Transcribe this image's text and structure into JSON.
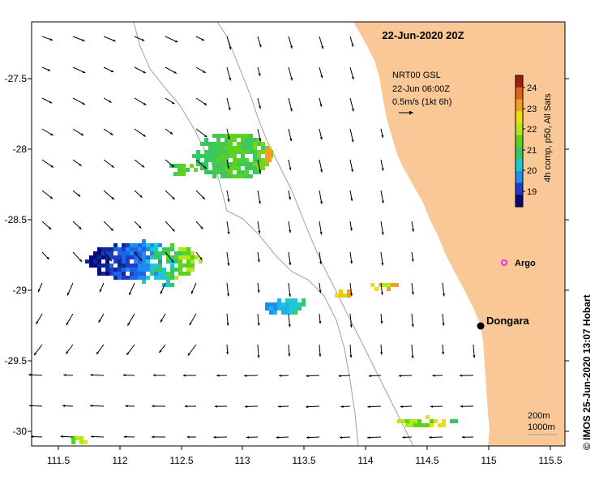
{
  "title": "22-Jun-2020 20Z",
  "current_legend": {
    "source": "NRT00 GSL",
    "time": "22-Jun 06:00Z",
    "scale": "0.5m/s (1kt 6h)"
  },
  "colorbar": {
    "label": "4h comp, p50, All Sats",
    "ticks": [
      "19",
      "20",
      "21",
      "22",
      "23",
      "24"
    ],
    "colors": [
      "#08087a",
      "#1e3cc8",
      "#1e8cf0",
      "#1ec8d2",
      "#32c864",
      "#5ad21e",
      "#b4e61e",
      "#f0dc14",
      "#f0a01e",
      "#dc641e",
      "#a01e0a"
    ]
  },
  "places": [
    {
      "name": "Dongara"
    },
    {
      "name": "Argo"
    }
  ],
  "isobath_legend": [
    "200m",
    "1000m"
  ],
  "credit": "© IMOS 25-Jun-2020 13:07 Hobart",
  "axes": {
    "x_ticks": [
      "111.5",
      "112",
      "112.5",
      "113",
      "113.5",
      "114",
      "114.5",
      "115",
      "115.5"
    ],
    "y_ticks": [
      "-27.5",
      "-28",
      "-28.5",
      "-29",
      "-29.5",
      "-30"
    ]
  },
  "colors": {
    "land": "#f9c896",
    "ocean": "#ffffff",
    "argo": "#e632e6",
    "isobath": "#a0a0a0"
  }
}
